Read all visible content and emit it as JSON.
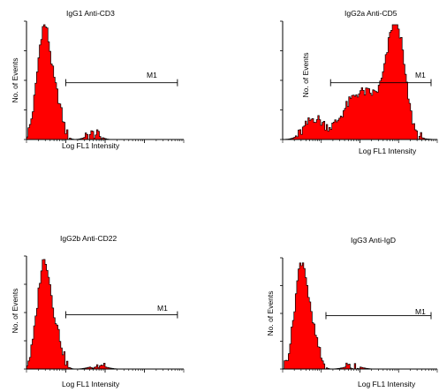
{
  "chart_data": [
    {
      "type": "histogram",
      "title": "IgG1 Anti-CD3",
      "ylabel": "No. of Events",
      "xlabel": "Log FL1 Intensity",
      "marker": {
        "label": "M1",
        "range": [
          0.25,
          0.96
        ]
      },
      "fill_color": "#ff0000",
      "x_scale": "log",
      "components": [
        {
          "center": 0.11,
          "width": 0.045,
          "height": 1.0
        },
        {
          "center": 0.2,
          "width": 0.03,
          "height": 0.22
        },
        {
          "center": 0.42,
          "width": 0.04,
          "height": 0.05
        }
      ]
    },
    {
      "type": "histogram",
      "title": "IgG2a Anti-CD5",
      "ylabel": "No. of Events",
      "xlabel": "Log FL1 Intensity",
      "marker": {
        "label": "M1",
        "range": [
          0.31,
          0.96
        ]
      },
      "fill_color": "#ff0000",
      "x_scale": "log",
      "components": [
        {
          "center": 0.2,
          "width": 0.06,
          "height": 0.18
        },
        {
          "center": 0.45,
          "width": 0.09,
          "height": 0.25
        },
        {
          "center": 0.6,
          "width": 0.11,
          "height": 0.3
        },
        {
          "center": 0.73,
          "width": 0.055,
          "height": 0.9
        }
      ]
    },
    {
      "type": "histogram",
      "title": "IgG2b Anti-CD22",
      "ylabel": "No. of Events",
      "xlabel": "Log FL1 Intensity",
      "marker": {
        "label": "M1",
        "range": [
          0.25,
          0.96
        ]
      },
      "fill_color": "#ff0000",
      "x_scale": "log",
      "components": [
        {
          "center": 0.11,
          "width": 0.045,
          "height": 1.0
        },
        {
          "center": 0.2,
          "width": 0.03,
          "height": 0.2
        },
        {
          "center": 0.45,
          "width": 0.05,
          "height": 0.03
        }
      ]
    },
    {
      "type": "histogram",
      "title": "IgG3 Anti-IgD",
      "ylabel": "No. of Events",
      "xlabel": "Log FL1 Intensity",
      "marker": {
        "label": "M1",
        "range": [
          0.28,
          0.96
        ]
      },
      "fill_color": "#ff0000",
      "x_scale": "log",
      "components": [
        {
          "center": 0.12,
          "width": 0.045,
          "height": 1.0
        },
        {
          "center": 0.21,
          "width": 0.03,
          "height": 0.18
        },
        {
          "center": 0.45,
          "width": 0.05,
          "height": 0.03
        }
      ]
    }
  ]
}
